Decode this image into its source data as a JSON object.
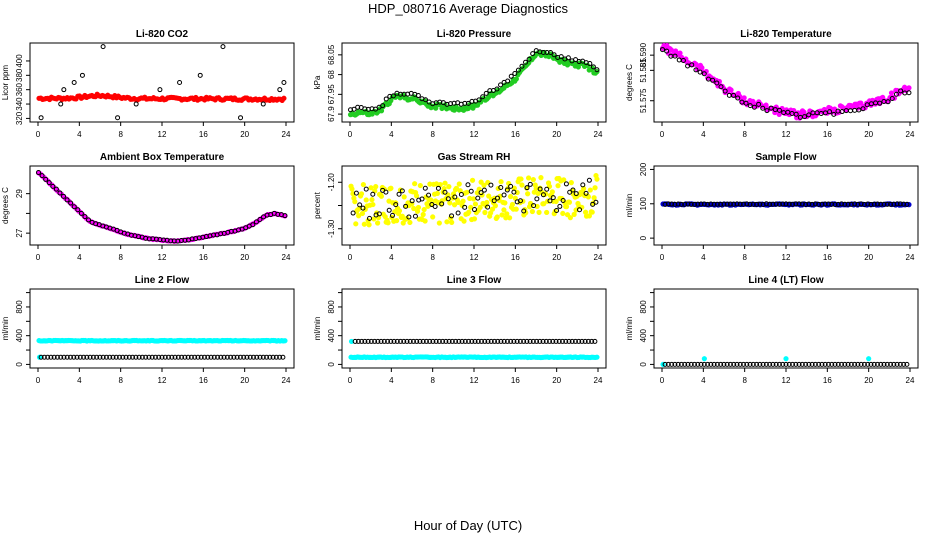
{
  "title": "HDP_080716  Average Diagnostics",
  "xlabel": "Hour of Day (UTC)",
  "colors": {
    "red": "#ff0000",
    "green": "#22cc22",
    "magenta": "#ff00ff",
    "yellow": "#ffff00",
    "blue": "#0000cc",
    "cyan": "#00ffff",
    "black": "#000000"
  },
  "chart_data": [
    {
      "type": "scatter",
      "title": "Li-820 CO2",
      "ylabel": "Licor ppm",
      "xlim": [
        0,
        24
      ],
      "ylim": [
        315,
        425
      ],
      "xticks": [
        0,
        4,
        8,
        12,
        16,
        20,
        24
      ],
      "yticks": [
        320,
        340,
        360,
        380,
        400
      ],
      "series": [
        {
          "name": "dense",
          "color": "red",
          "pattern": "linear",
          "n": 140,
          "x0": 0.1,
          "x1": 23.8,
          "y0": 348,
          "y1": 347,
          "noise": 2,
          "bump": 4
        },
        {
          "name": "samples",
          "color": "black",
          "pattern": "pairs",
          "x": [
            0.3,
            2.2,
            2.5,
            3.5,
            4.3,
            6.3,
            7.7,
            9.5,
            11.8,
            13.7,
            15.7,
            17.9,
            19.6,
            21.8,
            23.4,
            23.8
          ],
          "levels": [
            321,
            340,
            360,
            370,
            380,
            420
          ]
        }
      ]
    },
    {
      "type": "scatter",
      "title": "Li-820 Pressure",
      "ylabel": "kPa",
      "xlim": [
        0,
        24
      ],
      "ylim": [
        67.88,
        68.08
      ],
      "xticks": [
        0,
        4,
        8,
        12,
        16,
        20,
        24
      ],
      "yticks": [
        67.9,
        67.95,
        68.0,
        68.05
      ],
      "series": [
        {
          "name": "dense",
          "color": "green",
          "pattern": "curve",
          "n": 160,
          "xs": [
            0,
            1,
            2,
            3,
            3.7,
            4.5,
            6,
            7,
            8,
            9,
            10,
            11,
            12,
            13,
            14,
            15,
            16,
            17,
            18,
            19,
            20,
            21,
            22,
            23,
            24
          ],
          "ys": [
            67.9,
            67.905,
            67.9,
            67.91,
            67.93,
            67.945,
            67.94,
            67.93,
            67.92,
            67.92,
            67.915,
            67.915,
            67.92,
            67.94,
            67.95,
            67.97,
            67.99,
            68.02,
            68.055,
            68.05,
            68.04,
            68.03,
            68.025,
            68.02,
            68.0
          ],
          "noise": 0.006
        },
        {
          "name": "samples",
          "color": "black",
          "pattern": "curve",
          "n": 70,
          "xs": [
            0,
            1,
            2,
            3,
            3.7,
            4.5,
            6,
            7,
            8,
            9,
            10,
            11,
            12,
            13,
            14,
            15,
            16,
            17,
            18,
            19,
            20,
            21,
            22,
            23,
            24
          ],
          "ys": [
            67.91,
            67.915,
            67.91,
            67.92,
            67.94,
            67.955,
            67.95,
            67.94,
            67.93,
            67.93,
            67.925,
            67.925,
            67.93,
            67.95,
            67.96,
            67.98,
            68.0,
            68.03,
            68.062,
            68.058,
            68.048,
            68.04,
            68.035,
            68.03,
            68.008
          ],
          "noise": 0.004
        }
      ]
    },
    {
      "type": "scatter",
      "title": "Li-820 Temperature",
      "ylabel": "degrees C",
      "xlim": [
        0,
        24
      ],
      "ylim": [
        51.568,
        51.594
      ],
      "xticks": [
        0,
        4,
        8,
        12,
        16,
        20,
        24
      ],
      "yticks": [
        51.575,
        51.585,
        51.59
      ],
      "ytick_labels": [
        "51.575",
        "51.585",
        "51.590"
      ],
      "series": [
        {
          "name": "dense",
          "color": "magenta",
          "pattern": "curve",
          "n": 170,
          "xs": [
            0,
            1,
            2,
            3,
            4,
            5,
            6,
            7,
            8,
            9,
            10,
            11,
            12,
            13,
            14,
            15,
            16,
            17,
            18,
            19,
            20,
            21,
            22,
            23,
            24
          ],
          "ys": [
            51.593,
            51.591,
            51.589,
            51.587,
            51.585,
            51.582,
            51.579,
            51.577,
            51.575,
            51.574,
            51.573,
            51.572,
            51.571,
            51.5705,
            51.5705,
            51.571,
            51.5715,
            51.572,
            51.5725,
            51.573,
            51.574,
            51.575,
            51.576,
            51.578,
            51.579
          ],
          "noise": 0.0012
        },
        {
          "name": "samples",
          "color": "black",
          "pattern": "curve",
          "n": 60,
          "xs": [
            0,
            1,
            2,
            3,
            4,
            5,
            6,
            7,
            8,
            9,
            10,
            11,
            12,
            13,
            14,
            15,
            16,
            17,
            18,
            19,
            20,
            21,
            22,
            23,
            24
          ],
          "ys": [
            51.592,
            51.59,
            51.588,
            51.586,
            51.584,
            51.581,
            51.578,
            51.576,
            51.5745,
            51.5735,
            51.5725,
            51.5715,
            51.5705,
            51.57,
            51.57,
            51.5705,
            51.571,
            51.5715,
            51.572,
            51.5725,
            51.5735,
            51.5745,
            51.5755,
            51.5775,
            51.5785
          ],
          "noise": 0.0008
        }
      ]
    },
    {
      "type": "scatter",
      "title": "Ambient Box Temperature",
      "ylabel": "degrees C",
      "xlim": [
        0,
        24
      ],
      "ylim": [
        26.4,
        30.4
      ],
      "xticks": [
        0,
        4,
        8,
        12,
        16,
        20,
        24
      ],
      "yticks": [
        27,
        28,
        29
      ],
      "ytick_labels": [
        "27",
        "",
        "29"
      ],
      "series": [
        {
          "name": "dense",
          "color": "magenta",
          "pattern": "curve",
          "n": 130,
          "xs": [
            0,
            1,
            2,
            3,
            4,
            5,
            6,
            7,
            8,
            9,
            10,
            11,
            12,
            13,
            14,
            15,
            16,
            17,
            18,
            19,
            20,
            21,
            22,
            23,
            24
          ],
          "ys": [
            30.1,
            29.6,
            29.1,
            28.6,
            28.1,
            27.6,
            27.4,
            27.25,
            27.05,
            26.9,
            26.8,
            26.7,
            26.65,
            26.6,
            26.62,
            26.7,
            26.8,
            26.9,
            27.0,
            27.1,
            27.25,
            27.5,
            27.9,
            28.0,
            27.85
          ],
          "noise": 0.02
        },
        {
          "name": "samples",
          "color": "black",
          "pattern": "curve",
          "n": 70,
          "xs": [
            0,
            1,
            2,
            3,
            4,
            5,
            6,
            7,
            8,
            9,
            10,
            11,
            12,
            13,
            14,
            15,
            16,
            17,
            18,
            19,
            20,
            21,
            22,
            23,
            24
          ],
          "ys": [
            30.1,
            29.6,
            29.1,
            28.6,
            28.1,
            27.6,
            27.4,
            27.25,
            27.05,
            26.9,
            26.8,
            26.7,
            26.65,
            26.6,
            26.62,
            26.7,
            26.8,
            26.9,
            27.0,
            27.1,
            27.25,
            27.5,
            27.9,
            28.0,
            27.85
          ],
          "noise": 0.02
        }
      ]
    },
    {
      "type": "scatter",
      "title": "Gas Stream RH",
      "ylabel": "percent",
      "xlim": [
        0,
        24
      ],
      "ylim": [
        -1.335,
        -1.165
      ],
      "xticks": [
        0,
        4,
        8,
        12,
        16,
        20,
        24
      ],
      "yticks": [
        -1.3,
        -1.25,
        -1.2
      ],
      "ytick_labels": [
        "-1.30",
        "",
        "-1.20"
      ],
      "series": [
        {
          "name": "dense",
          "color": "yellow",
          "pattern": "linear",
          "n": 260,
          "x0": 0.1,
          "x1": 23.9,
          "y0": -1.25,
          "y1": -1.23,
          "noise": 0.045,
          "bump": 0
        },
        {
          "name": "samples",
          "color": "black",
          "pattern": "linear",
          "n": 75,
          "x0": 0.3,
          "x1": 23.8,
          "y0": -1.245,
          "y1": -1.23,
          "noise": 0.035,
          "bump": 0
        }
      ]
    },
    {
      "type": "scatter",
      "title": "Sample Flow",
      "ylabel": "ml/min",
      "xlim": [
        0,
        24
      ],
      "ylim": [
        -20,
        210
      ],
      "xticks": [
        0,
        4,
        8,
        12,
        16,
        20,
        24
      ],
      "yticks": [
        0,
        100,
        200
      ],
      "series": [
        {
          "name": "dense",
          "color": "blue",
          "pattern": "linear",
          "n": 130,
          "x0": 0.1,
          "x1": 23.9,
          "y0": 98,
          "y1": 98,
          "noise": 2,
          "bump": 0
        },
        {
          "name": "samples",
          "color": "black",
          "pattern": "linear",
          "n": 75,
          "x0": 0.3,
          "x1": 23.7,
          "y0": 99,
          "y1": 99,
          "noise": 1,
          "bump": 0
        }
      ]
    },
    {
      "type": "scatter",
      "title": "Line 2 Flow",
      "ylabel": "ml/min",
      "xlim": [
        0,
        24
      ],
      "ylim": [
        -50,
        1050
      ],
      "xticks": [
        0,
        4,
        8,
        12,
        16,
        20,
        24
      ],
      "yticks": [
        0,
        200,
        400,
        600,
        800,
        1000
      ],
      "ytick_labels": [
        "0",
        "",
        "400",
        "",
        "800",
        ""
      ],
      "series": [
        {
          "name": "dense",
          "color": "cyan",
          "pattern": "linear",
          "n": 150,
          "x0": 0.1,
          "x1": 23.9,
          "y0": 330,
          "y1": 330,
          "noise": 4,
          "bump": 0
        },
        {
          "name": "dense-low",
          "color": "cyan",
          "pattern": "linear",
          "n": 1,
          "x0": 0.15,
          "x1": 0.15,
          "y0": 100,
          "y1": 100,
          "noise": 0,
          "bump": 0
        },
        {
          "name": "samples",
          "color": "black",
          "pattern": "linear",
          "n": 75,
          "x0": 0.3,
          "x1": 23.7,
          "y0": 100,
          "y1": 100,
          "noise": 0,
          "bump": 0
        }
      ]
    },
    {
      "type": "scatter",
      "title": "Line 3 Flow",
      "ylabel": "ml/min",
      "xlim": [
        0,
        24
      ],
      "ylim": [
        -50,
        1050
      ],
      "xticks": [
        0,
        4,
        8,
        12,
        16,
        20,
        24
      ],
      "yticks": [
        0,
        200,
        400,
        600,
        800,
        1000
      ],
      "ytick_labels": [
        "0",
        "",
        "400",
        "",
        "800",
        ""
      ],
      "series": [
        {
          "name": "dense",
          "color": "cyan",
          "pattern": "linear",
          "n": 150,
          "x0": 0.1,
          "x1": 23.9,
          "y0": 100,
          "y1": 100,
          "noise": 4,
          "bump": 0
        },
        {
          "name": "dense-high",
          "color": "cyan",
          "pattern": "linear",
          "n": 1,
          "x0": 0.15,
          "x1": 0.15,
          "y0": 320,
          "y1": 320,
          "noise": 0,
          "bump": 0
        },
        {
          "name": "samples",
          "color": "black",
          "pattern": "linear",
          "n": 75,
          "x0": 0.5,
          "x1": 23.7,
          "y0": 320,
          "y1": 320,
          "noise": 0,
          "bump": 0
        }
      ]
    },
    {
      "type": "scatter",
      "title": "Line 4 (LT) Flow",
      "ylabel": "ml/min",
      "xlim": [
        0,
        24
      ],
      "ylim": [
        -50,
        1050
      ],
      "xticks": [
        0,
        4,
        8,
        12,
        16,
        20,
        24
      ],
      "yticks": [
        0,
        200,
        400,
        600,
        800,
        1000
      ],
      "ytick_labels": [
        "0",
        "",
        "400",
        "",
        "800",
        ""
      ],
      "series": [
        {
          "name": "dense",
          "color": "cyan",
          "pattern": "pts",
          "x": [
            0.1,
            4.1,
            12.0,
            20.0
          ],
          "y": [
            0,
            80,
            80,
            80
          ]
        },
        {
          "name": "samples",
          "color": "black",
          "pattern": "linear",
          "n": 75,
          "x0": 0.3,
          "x1": 23.7,
          "y0": 0,
          "y1": 0,
          "noise": 0,
          "bump": 0
        }
      ]
    }
  ]
}
